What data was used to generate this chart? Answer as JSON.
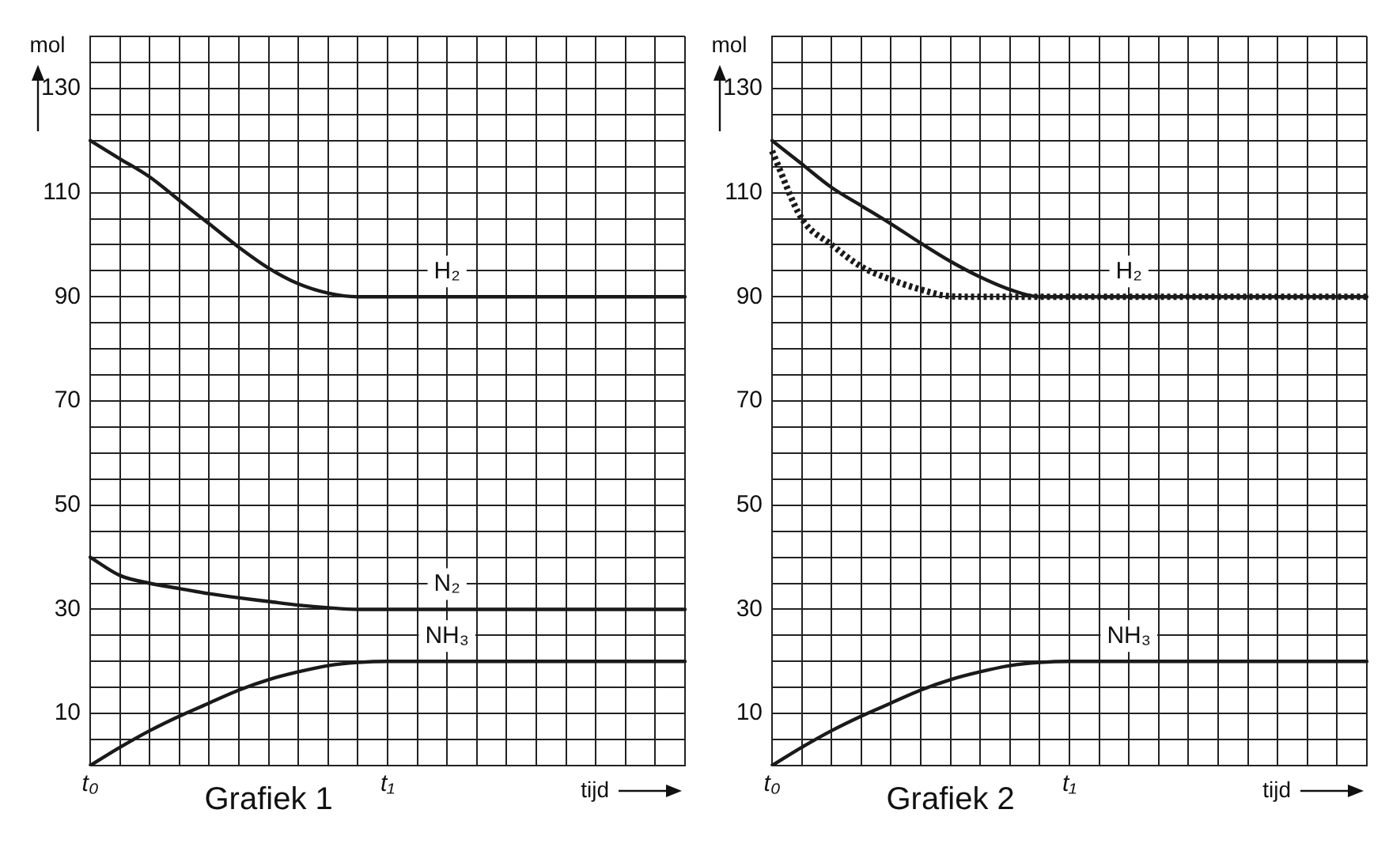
{
  "chart_data": [
    {
      "type": "line",
      "title": "Grafiek 1",
      "xlabel": "tijd",
      "ylabel": "mol",
      "ylim": [
        0,
        140
      ],
      "categories": [
        "t₀",
        null,
        null,
        null,
        null,
        null,
        null,
        null,
        null,
        null,
        "t₁",
        null,
        null,
        null,
        null,
        null,
        null,
        null,
        null,
        null,
        null
      ],
      "yticks": [
        {
          "value": 0,
          "label": null
        },
        {
          "value": 5,
          "label": null
        },
        10,
        {
          "value": 15,
          "label": null
        },
        {
          "value": 20,
          "label": null
        },
        {
          "value": 25,
          "label": null
        },
        30,
        {
          "value": 35,
          "label": null
        },
        {
          "value": 40,
          "label": null
        },
        {
          "value": 45,
          "label": null
        },
        50,
        {
          "value": 55,
          "label": null
        },
        {
          "value": 60,
          "label": null
        },
        {
          "value": 65,
          "label": null
        },
        70,
        {
          "value": 75,
          "label": null
        },
        {
          "value": 80,
          "label": null
        },
        {
          "value": 85,
          "label": null
        },
        90,
        {
          "value": 95,
          "label": null
        },
        {
          "value": 100,
          "label": null
        },
        {
          "value": 105,
          "label": null
        },
        110,
        {
          "value": 115,
          "label": null
        },
        {
          "value": 120,
          "label": null
        },
        {
          "value": 125,
          "label": null
        },
        130,
        {
          "value": 135,
          "label": null
        },
        {
          "value": 140,
          "label": null
        }
      ],
      "grid": true,
      "legend": false,
      "marker": "none",
      "series": [
        {
          "name": "H₂",
          "color": "#1a1a1a",
          "line_style": "solid",
          "values": [
            120,
            116.5,
            113,
            108.5,
            104,
            99.5,
            95.5,
            92.5,
            90.7,
            90,
            90,
            90,
            90,
            90,
            90,
            90,
            90,
            90,
            90,
            90,
            90
          ]
        },
        {
          "name": "N₂",
          "color": "#1a1a1a",
          "line_style": "solid",
          "values": [
            40,
            36.5,
            35,
            34,
            33,
            32.2,
            31.5,
            30.8,
            30.3,
            30,
            30,
            30,
            30,
            30,
            30,
            30,
            30,
            30,
            30,
            30,
            30
          ]
        },
        {
          "name": "NH₃",
          "color": "#1a1a1a",
          "line_style": "solid",
          "values": [
            0,
            3.5,
            6.7,
            9.5,
            12,
            14.5,
            16.5,
            18,
            19.2,
            19.8,
            20,
            20,
            20,
            20,
            20,
            20,
            20,
            20,
            20,
            20,
            20
          ]
        }
      ]
    },
    {
      "type": "line",
      "title": "Grafiek 2",
      "xlabel": "tijd",
      "ylabel": "mol",
      "ylim": [
        0,
        140
      ],
      "categories": [
        "t₀",
        null,
        null,
        null,
        null,
        null,
        null,
        null,
        null,
        null,
        "t₁",
        null,
        null,
        null,
        null,
        null,
        null,
        null,
        null,
        null,
        null
      ],
      "yticks": [
        {
          "value": 0,
          "label": null
        },
        {
          "value": 5,
          "label": null
        },
        10,
        {
          "value": 15,
          "label": null
        },
        {
          "value": 20,
          "label": null
        },
        {
          "value": 25,
          "label": null
        },
        30,
        {
          "value": 35,
          "label": null
        },
        {
          "value": 40,
          "label": null
        },
        {
          "value": 45,
          "label": null
        },
        50,
        {
          "value": 55,
          "label": null
        },
        {
          "value": 60,
          "label": null
        },
        {
          "value": 65,
          "label": null
        },
        70,
        {
          "value": 75,
          "label": null
        },
        {
          "value": 80,
          "label": null
        },
        {
          "value": 85,
          "label": null
        },
        90,
        {
          "value": 95,
          "label": null
        },
        {
          "value": 100,
          "label": null
        },
        {
          "value": 105,
          "label": null
        },
        110,
        {
          "value": 115,
          "label": null
        },
        {
          "value": 120,
          "label": null
        },
        {
          "value": 125,
          "label": null
        },
        130,
        {
          "value": 135,
          "label": null
        },
        {
          "value": 140,
          "label": null
        }
      ],
      "grid": true,
      "legend": false,
      "marker": "none",
      "series": [
        {
          "name": "H₂",
          "color": "#1a1a1a",
          "line_style": "solid",
          "values": [
            120,
            115.5,
            111,
            107.5,
            104,
            100.3,
            96.8,
            93.8,
            91.4,
            90,
            90,
            90,
            90,
            90,
            90,
            90,
            90,
            90,
            90,
            90,
            90
          ]
        },
        {
          "color": "#1a1a1a",
          "line_style": "dotted",
          "values": [
            118,
            105,
            100,
            95.8,
            93.3,
            91.4,
            90.1,
            90,
            90,
            90,
            90,
            90,
            90,
            90,
            90,
            90,
            90,
            90,
            90,
            90,
            90
          ]
        },
        {
          "name": "NH₃",
          "color": "#1a1a1a",
          "line_style": "solid",
          "values": [
            0,
            3.5,
            6.7,
            9.5,
            12,
            14.5,
            16.5,
            18,
            19.2,
            19.8,
            20,
            20,
            20,
            20,
            20,
            20,
            20,
            20,
            20,
            20,
            20
          ]
        }
      ]
    }
  ]
}
